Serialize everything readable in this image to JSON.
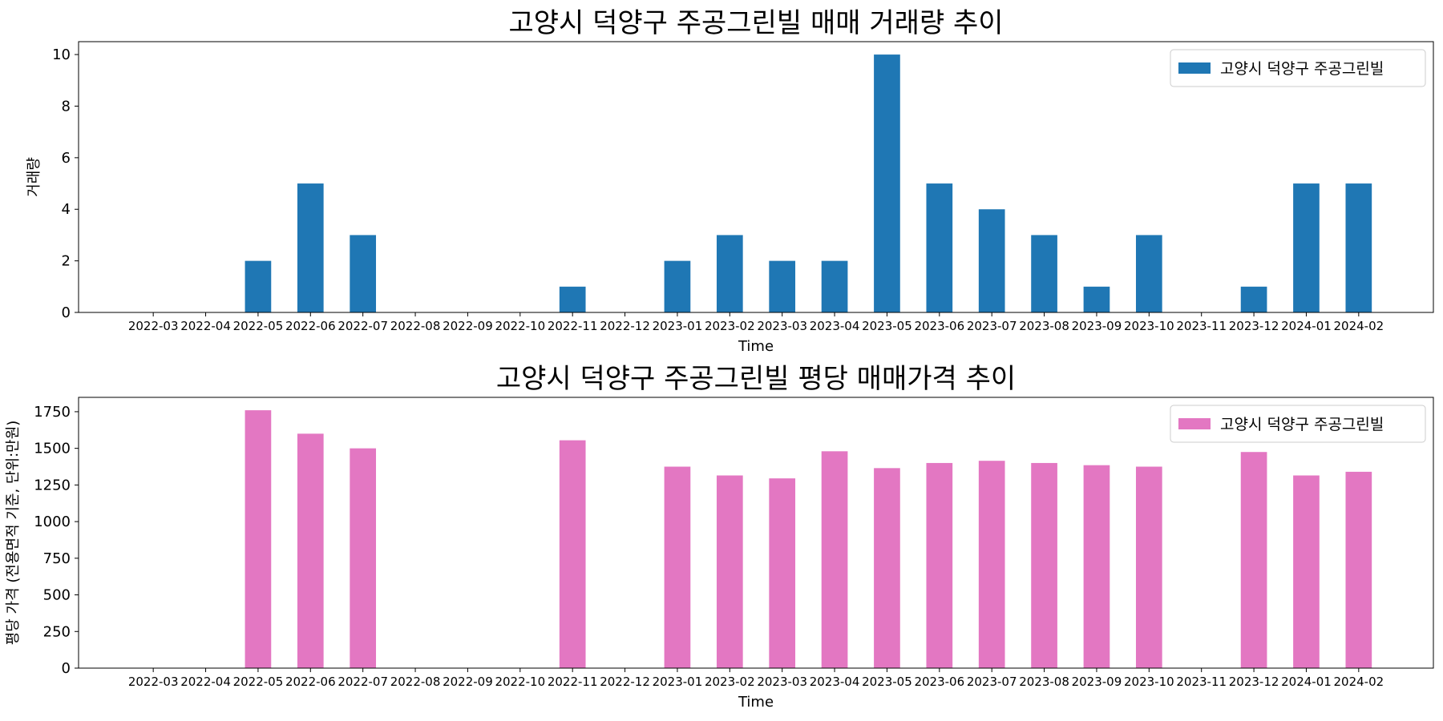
{
  "chart_data": [
    {
      "type": "bar",
      "title": "고양시 덕양구 주공그린빌 매매 거래량 추이",
      "xlabel": "Time",
      "ylabel": "거래량",
      "categories": [
        "2022-03",
        "2022-04",
        "2022-05",
        "2022-06",
        "2022-07",
        "2022-08",
        "2022-09",
        "2022-10",
        "2022-11",
        "2022-12",
        "2023-01",
        "2023-02",
        "2023-03",
        "2023-04",
        "2023-05",
        "2023-06",
        "2023-07",
        "2023-08",
        "2023-09",
        "2023-10",
        "2023-11",
        "2023-12",
        "2024-01",
        "2024-02"
      ],
      "series": [
        {
          "name": "고양시 덕양구 주공그린빌",
          "color": "#1f77b4",
          "values": [
            0,
            0,
            2,
            5,
            3,
            0,
            0,
            0,
            1,
            0,
            2,
            3,
            2,
            2,
            10,
            5,
            4,
            3,
            1,
            3,
            0,
            1,
            5,
            5
          ]
        }
      ],
      "ylim": [
        0,
        10.5
      ],
      "yticks": [
        0,
        2,
        4,
        6,
        8,
        10
      ],
      "legend": "top-right",
      "grid": false
    },
    {
      "type": "bar",
      "title": "고양시 덕양구 주공그린빌 평당 매매가격 추이",
      "xlabel": "Time",
      "ylabel": "평당 가격 (전용면적 기준, 단위:만원)",
      "categories": [
        "2022-03",
        "2022-04",
        "2022-05",
        "2022-06",
        "2022-07",
        "2022-08",
        "2022-09",
        "2022-10",
        "2022-11",
        "2022-12",
        "2023-01",
        "2023-02",
        "2023-03",
        "2023-04",
        "2023-05",
        "2023-06",
        "2023-07",
        "2023-08",
        "2023-09",
        "2023-10",
        "2023-11",
        "2023-12",
        "2024-01",
        "2024-02"
      ],
      "series": [
        {
          "name": "고양시 덕양구 주공그린빌",
          "color": "#e377c2",
          "values": [
            0,
            0,
            1760,
            1600,
            1500,
            0,
            0,
            0,
            1555,
            0,
            1375,
            1315,
            1295,
            1480,
            1365,
            1400,
            1415,
            1400,
            1385,
            1375,
            0,
            1475,
            1315,
            1340
          ]
        }
      ],
      "ylim": [
        0,
        1848
      ],
      "yticks": [
        0,
        250,
        500,
        750,
        1000,
        1250,
        1500,
        1750
      ],
      "legend": "top-right",
      "grid": false
    }
  ]
}
